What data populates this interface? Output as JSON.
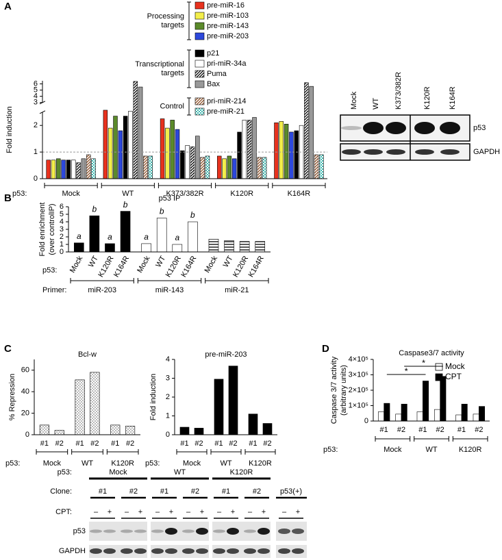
{
  "panels": [
    "A",
    "B",
    "C",
    "D"
  ],
  "chart_data": [
    {
      "type": "bar",
      "ylabel": "Fold induction",
      "ylim": [
        0,
        6.5
      ],
      "ybreak": [
        2.5,
        3
      ],
      "yticks": [
        0,
        1,
        2,
        3,
        4,
        5,
        6
      ],
      "reference_line": 1,
      "x_label": "p53:",
      "categories": [
        "Mock",
        "WT",
        "K373/382R",
        "K120R",
        "K164R"
      ],
      "series_groups": [
        {
          "label": [
            "Processing",
            "targets"
          ],
          "series": [
            {
              "name": "pre-miR-16",
              "color": "#e8321e",
              "values": [
                0.7,
                2.6,
                2.25,
                0.85,
                2.1
              ]
            },
            {
              "name": "pre-miR-103",
              "color": "#f3ee4b",
              "values": [
                0.7,
                1.9,
                1.9,
                0.75,
                2.15
              ]
            },
            {
              "name": "pre-miR-143",
              "color": "#5b8a2b",
              "values": [
                0.75,
                2.35,
                2.2,
                0.85,
                2.05
              ]
            },
            {
              "name": "pre-miR-203",
              "color": "#2d48dc",
              "values": [
                0.7,
                1.8,
                1.85,
                0.75,
                1.75
              ]
            }
          ]
        },
        {
          "label": [
            "Transcriptional",
            "targets"
          ],
          "series": [
            {
              "name": "p21",
              "color": "#000000",
              "values": [
                0.7,
                2.35,
                1.05,
                1.75,
                1.8
              ]
            },
            {
              "name": "pri-miR-34a",
              "color": "#ffffff",
              "values": [
                0.7,
                2.55,
                1.25,
                2.2,
                2.0
              ]
            },
            {
              "name": "Puma",
              "color": "#000000",
              "pattern": "hatch",
              "values": [
                0.6,
                6.4,
                1.2,
                2.2,
                6.2
              ]
            },
            {
              "name": "Bax",
              "color": "#999999",
              "values": [
                0.75,
                5.5,
                1.6,
                2.3,
                5.6
              ]
            }
          ]
        },
        {
          "label": [
            "Control"
          ],
          "series": [
            {
              "name": "pri-miR-214",
              "color": "#8b4a1f",
              "pattern": "hatch",
              "values": [
                0.9,
                0.85,
                0.8,
                0.8,
                0.9
              ]
            },
            {
              "name": "pre-miR-21",
              "color": "#3fb8b0",
              "pattern": "check",
              "values": [
                0.75,
                0.85,
                0.85,
                0.8,
                0.9
              ]
            }
          ]
        }
      ]
    },
    {
      "type": "bar",
      "title": "p53 IP",
      "ylabel": [
        "Fold enrichment",
        "(over controlIP)"
      ],
      "ylim": [
        0,
        6
      ],
      "yticks": [
        0,
        1,
        2,
        3,
        4,
        5,
        6
      ],
      "x_label": "p53:",
      "group_label": "Primer:",
      "groups": [
        {
          "name": "miR-203",
          "color": "#000000",
          "categories": [
            "Mock",
            "WT",
            "K120R",
            "K164R"
          ],
          "values": [
            1.2,
            4.8,
            1.1,
            5.4
          ],
          "annotations": [
            "a",
            "b",
            "a",
            "b"
          ]
        },
        {
          "name": "miR-143",
          "color": "#ffffff",
          "categories": [
            "Mock",
            "WT",
            "K120R",
            "K164R"
          ],
          "values": [
            1.1,
            4.5,
            1.0,
            4.0
          ],
          "annotations": [
            "a",
            "b",
            "a",
            "b"
          ]
        },
        {
          "name": "miR-21",
          "color": "#000000",
          "pattern": "stripes",
          "categories": [
            "Mock",
            "WT",
            "K120R",
            "K164R"
          ],
          "values": [
            1.7,
            1.5,
            1.4,
            1.4
          ]
        }
      ]
    },
    {
      "type": "bar",
      "title": "Bcl-w",
      "ylabel": "% Repression",
      "ylim": [
        0,
        70
      ],
      "yticks": [
        0,
        20,
        40,
        60
      ],
      "x_label": "p53:",
      "color": "#666666",
      "pattern": "dots",
      "groups": [
        {
          "name": "Mock",
          "categories": [
            "#1",
            "#2"
          ],
          "values": [
            9,
            4
          ]
        },
        {
          "name": "WT",
          "categories": [
            "#1",
            "#2"
          ],
          "values": [
            51,
            58
          ]
        },
        {
          "name": "K120R",
          "categories": [
            "#1",
            "#2"
          ],
          "values": [
            9,
            8
          ]
        }
      ]
    },
    {
      "type": "bar",
      "title": "pre-miR-203",
      "ylabel": "Fold induction",
      "ylim": [
        0,
        4
      ],
      "yticks": [
        0,
        1,
        2,
        3,
        4
      ],
      "x_label": "p53:",
      "color": "#000000",
      "groups": [
        {
          "name": "Mock",
          "categories": [
            "#1",
            "#2"
          ],
          "values": [
            0.4,
            0.35
          ]
        },
        {
          "name": "WT",
          "categories": [
            "#1",
            "#2"
          ],
          "values": [
            2.95,
            3.65
          ]
        },
        {
          "name": "K120R",
          "categories": [
            "#1",
            "#2"
          ],
          "values": [
            1.1,
            0.6
          ]
        }
      ]
    },
    {
      "type": "grouped_bar",
      "title": "Caspase3/7 activity",
      "ylabel": [
        "Caspase 3/7 activity",
        "(arbitrary units)"
      ],
      "ylim": [
        0,
        400000
      ],
      "yticks": [
        0,
        {
          "value": 100000,
          "label": "1×10⁵"
        },
        {
          "value": 200000,
          "label": "2×10⁵"
        },
        {
          "value": 300000,
          "label": "3×10⁵"
        },
        {
          "value": 400000,
          "label": "4×10⁵"
        }
      ],
      "x_label": "p53:",
      "groups": [
        {
          "name": "Mock",
          "categories": [
            "#1",
            "#2"
          ]
        },
        {
          "name": "WT",
          "categories": [
            "#1",
            "#2"
          ]
        },
        {
          "name": "K120R",
          "categories": [
            "#1",
            "#2"
          ]
        }
      ],
      "series": [
        {
          "name": "Mock",
          "color": "#ffffff",
          "values": [
            60000,
            45000,
            60000,
            75000,
            40000,
            45000
          ]
        },
        {
          "name": "CPT",
          "color": "#000000",
          "values": [
            115000,
            110000,
            260000,
            290000,
            110000,
            95000
          ]
        }
      ],
      "annotations": [
        "*",
        "*"
      ]
    }
  ],
  "blot_A": {
    "lanes": [
      "Mock",
      "WT",
      "K373/382R",
      "K120R",
      "K164R"
    ],
    "bands": [
      "p53",
      "GAPDH"
    ]
  },
  "blot_C": {
    "row_labels": [
      "p53:",
      "Clone:",
      "CPT:"
    ],
    "groups": [
      "Mock",
      "WT",
      "K120R"
    ],
    "clones": [
      "#1",
      "#2",
      "#1",
      "#2",
      "#1",
      "#2"
    ],
    "control": "p53(+)",
    "treatments": [
      "–",
      "+",
      "–",
      "+",
      "–",
      "+",
      "–",
      "+",
      "–",
      "+",
      "–",
      "+",
      "–",
      "+"
    ],
    "bands": [
      "p53",
      "GAPDH"
    ]
  }
}
